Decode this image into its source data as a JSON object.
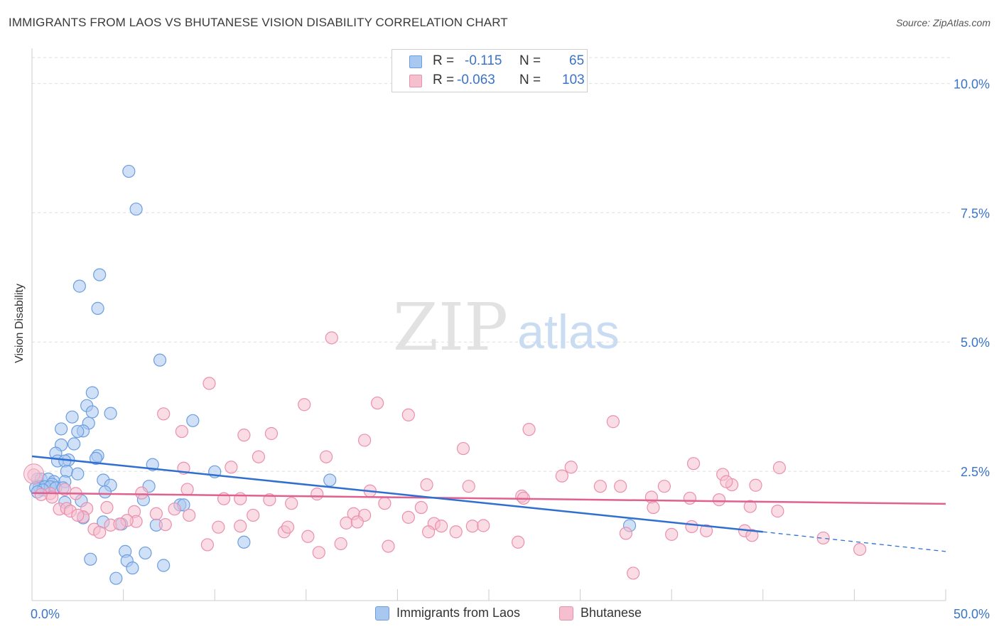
{
  "title": "IMMIGRANTS FROM LAOS VS BHUTANESE VISION DISABILITY CORRELATION CHART",
  "source": "Source: ZipAtlas.com",
  "watermark": {
    "zip": "ZIP",
    "atlas": "atlas"
  },
  "legend": {
    "series1": {
      "r_label": "R =",
      "r_value": "-0.115",
      "n_label": "N =",
      "n_value": "65"
    },
    "series2": {
      "r_label": "R =",
      "r_value": "-0.063",
      "n_label": "N =",
      "n_value": "103"
    }
  },
  "colors": {
    "blue_fill": "#a9c8f0",
    "blue_stroke": "#6a9ee0",
    "blue_line": "#2f6fd0",
    "pink_fill": "#f6bfd0",
    "pink_stroke": "#eb8fae",
    "pink_line": "#e0608f",
    "tick_text": "#3a74c9",
    "grid": "#dddddd"
  },
  "chart_data": {
    "type": "scatter",
    "title": "IMMIGRANTS FROM LAOS VS BHUTANESE VISION DISABILITY CORRELATION CHART",
    "xlabel": "",
    "ylabel": "Vision Disability",
    "xlim": [
      0,
      50
    ],
    "ylim": [
      0,
      10.5
    ],
    "x_tick_labels": [
      "0.0%",
      "50.0%"
    ],
    "y_ticks": [
      2.5,
      5.0,
      7.5,
      10.0
    ],
    "y_tick_labels": [
      "2.5%",
      "5.0%",
      "7.5%",
      "10.0%"
    ],
    "series": [
      {
        "name": "Immigrants from Laos",
        "color": "blue",
        "points": [
          [
            5.3,
            8.3
          ],
          [
            5.7,
            7.57
          ],
          [
            3.7,
            6.3
          ],
          [
            2.6,
            6.08
          ],
          [
            3.6,
            5.65
          ],
          [
            7.0,
            4.65
          ],
          [
            3.3,
            4.02
          ],
          [
            4.3,
            3.62
          ],
          [
            3.0,
            3.77
          ],
          [
            2.2,
            3.55
          ],
          [
            3.1,
            3.43
          ],
          [
            8.8,
            3.48
          ],
          [
            3.3,
            3.65
          ],
          [
            1.6,
            3.32
          ],
          [
            2.8,
            3.28
          ],
          [
            2.3,
            3.03
          ],
          [
            1.6,
            3.01
          ],
          [
            2.5,
            3.27
          ],
          [
            3.6,
            2.8
          ],
          [
            1.3,
            2.85
          ],
          [
            2.0,
            2.72
          ],
          [
            1.4,
            2.7
          ],
          [
            1.8,
            2.7
          ],
          [
            3.5,
            2.75
          ],
          [
            6.6,
            2.63
          ],
          [
            10.0,
            2.49
          ],
          [
            1.9,
            2.5
          ],
          [
            2.5,
            2.45
          ],
          [
            0.3,
            2.35
          ],
          [
            0.5,
            2.35
          ],
          [
            0.9,
            2.35
          ],
          [
            1.2,
            2.3
          ],
          [
            3.9,
            2.33
          ],
          [
            1.8,
            2.3
          ],
          [
            1.1,
            2.25
          ],
          [
            0.4,
            2.2
          ],
          [
            0.7,
            2.2
          ],
          [
            1.0,
            2.2
          ],
          [
            1.3,
            2.18
          ],
          [
            0.2,
            2.18
          ],
          [
            0.6,
            2.14
          ],
          [
            1.7,
            2.18
          ],
          [
            4.3,
            2.23
          ],
          [
            6.4,
            2.21
          ],
          [
            0.3,
            2.1
          ],
          [
            4.0,
            2.1
          ],
          [
            16.3,
            2.33
          ],
          [
            2.7,
            1.93
          ],
          [
            6.1,
            1.95
          ],
          [
            8.1,
            1.85
          ],
          [
            8.3,
            1.85
          ],
          [
            2.8,
            1.6
          ],
          [
            3.9,
            1.52
          ],
          [
            4.9,
            1.48
          ],
          [
            6.8,
            1.46
          ],
          [
            11.6,
            1.13
          ],
          [
            32.7,
            1.45
          ],
          [
            5.1,
            0.95
          ],
          [
            6.2,
            0.92
          ],
          [
            3.2,
            0.8
          ],
          [
            5.2,
            0.77
          ],
          [
            5.5,
            0.63
          ],
          [
            7.2,
            0.68
          ],
          [
            4.6,
            0.43
          ],
          [
            1.8,
            1.9
          ]
        ]
      },
      {
        "name": "Bhutanese",
        "color": "pink",
        "points": [
          [
            16.4,
            5.08
          ],
          [
            9.7,
            4.2
          ],
          [
            14.9,
            3.79
          ],
          [
            18.9,
            3.82
          ],
          [
            7.2,
            3.61
          ],
          [
            20.6,
            3.59
          ],
          [
            31.8,
            3.46
          ],
          [
            8.2,
            3.27
          ],
          [
            11.6,
            3.2
          ],
          [
            13.1,
            3.23
          ],
          [
            18.2,
            3.1
          ],
          [
            27.2,
            3.31
          ],
          [
            23.6,
            2.94
          ],
          [
            12.4,
            2.78
          ],
          [
            16.1,
            2.78
          ],
          [
            10.9,
            2.58
          ],
          [
            8.3,
            2.56
          ],
          [
            0.1,
            2.43
          ],
          [
            36.2,
            2.65
          ],
          [
            40.9,
            2.57
          ],
          [
            29.5,
            2.58
          ],
          [
            29.0,
            2.41
          ],
          [
            37.8,
            2.44
          ],
          [
            38.3,
            2.24
          ],
          [
            38.0,
            2.3
          ],
          [
            39.6,
            2.23
          ],
          [
            21.6,
            2.24
          ],
          [
            23.9,
            2.21
          ],
          [
            31.1,
            2.21
          ],
          [
            32.2,
            2.21
          ],
          [
            34.6,
            2.21
          ],
          [
            18.5,
            2.12
          ],
          [
            15.6,
            2.06
          ],
          [
            1.0,
            2.07
          ],
          [
            1.1,
            2.0
          ],
          [
            0.5,
            2.05
          ],
          [
            1.8,
            2.15
          ],
          [
            8.5,
            2.15
          ],
          [
            6.0,
            2.08
          ],
          [
            2.4,
            2.07
          ],
          [
            10.5,
            1.97
          ],
          [
            11.4,
            1.97
          ],
          [
            13.0,
            1.95
          ],
          [
            14.2,
            1.88
          ],
          [
            19.3,
            1.88
          ],
          [
            21.3,
            1.8
          ],
          [
            26.8,
            2.02
          ],
          [
            26.9,
            1.98
          ],
          [
            33.9,
            2.0
          ],
          [
            36.0,
            1.98
          ],
          [
            37.6,
            1.95
          ],
          [
            39.3,
            1.82
          ],
          [
            40.8,
            1.73
          ],
          [
            34.0,
            1.8
          ],
          [
            1.5,
            1.77
          ],
          [
            1.9,
            1.78
          ],
          [
            3.0,
            1.78
          ],
          [
            4.1,
            1.8
          ],
          [
            5.6,
            1.72
          ],
          [
            7.8,
            1.77
          ],
          [
            8.6,
            1.65
          ],
          [
            6.8,
            1.68
          ],
          [
            2.1,
            1.73
          ],
          [
            12.1,
            1.65
          ],
          [
            17.6,
            1.68
          ],
          [
            18.2,
            1.65
          ],
          [
            20.6,
            1.61
          ],
          [
            22.0,
            1.49
          ],
          [
            17.2,
            1.5
          ],
          [
            17.8,
            1.52
          ],
          [
            4.3,
            1.46
          ],
          [
            5.7,
            1.53
          ],
          [
            7.3,
            1.47
          ],
          [
            5.2,
            1.55
          ],
          [
            2.8,
            1.62
          ],
          [
            2.5,
            1.65
          ],
          [
            3.4,
            1.38
          ],
          [
            10.2,
            1.42
          ],
          [
            11.4,
            1.44
          ],
          [
            13.8,
            1.33
          ],
          [
            14.0,
            1.42
          ],
          [
            22.4,
            1.44
          ],
          [
            23.2,
            1.33
          ],
          [
            24.1,
            1.44
          ],
          [
            24.7,
            1.45
          ],
          [
            21.7,
            1.33
          ],
          [
            3.7,
            1.32
          ],
          [
            4.8,
            1.48
          ],
          [
            15.1,
            1.24
          ],
          [
            26.6,
            1.13
          ],
          [
            35.0,
            1.28
          ],
          [
            32.5,
            1.3
          ],
          [
            36.1,
            1.43
          ],
          [
            36.9,
            1.35
          ],
          [
            39.0,
            1.35
          ],
          [
            39.4,
            1.26
          ],
          [
            43.3,
            1.21
          ],
          [
            45.3,
            0.99
          ],
          [
            16.9,
            1.1
          ],
          [
            9.6,
            1.08
          ],
          [
            19.5,
            1.05
          ],
          [
            15.7,
            0.93
          ],
          [
            32.9,
            0.53
          ]
        ]
      }
    ],
    "trendlines": [
      {
        "series": "Immigrants from Laos",
        "x0": 0,
        "y0": 2.79,
        "x1": 40,
        "y1": 1.33,
        "dashed_to_x": 50,
        "dashed_to_y": 0.95
      },
      {
        "series": "Bhutanese",
        "x0": 0,
        "y0": 2.08,
        "x1": 50,
        "y1": 1.87
      }
    ]
  },
  "bottom_legend": [
    {
      "label": "Immigrants from Laos"
    },
    {
      "label": "Bhutanese"
    }
  ]
}
